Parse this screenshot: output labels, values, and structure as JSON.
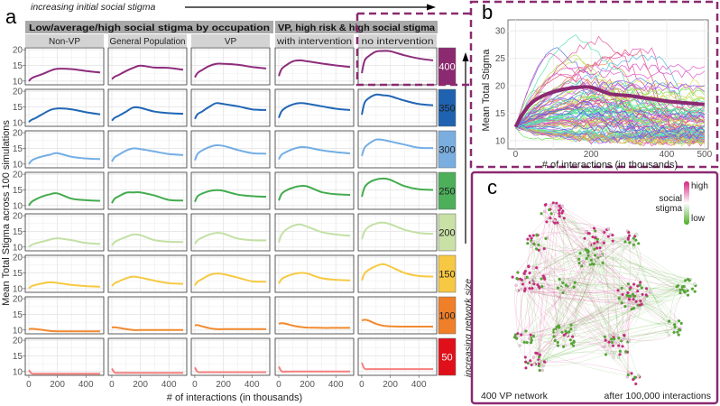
{
  "panel_labels": {
    "a": "a",
    "b": "b",
    "c": "c"
  },
  "chart_data": [
    {
      "panel": "a",
      "type": "line",
      "top_arrow_label": "increasing initial social stigma",
      "side_arrow_label": "increasing network size",
      "group_headers": [
        "Low/average/high social stigma by occupation",
        "VP, high risk & high social stigma"
      ],
      "columns": [
        "Non-VP",
        "General Population",
        "VP",
        "with intervention",
        "no intervention"
      ],
      "xlabel": "# of interactions (in thousands)",
      "ylabel": "Mean Total Stigma across 100 simulations",
      "x": [
        0,
        20,
        50,
        100,
        150,
        200,
        300,
        400,
        500
      ],
      "xlim": [
        -25,
        525
      ],
      "ylim": [
        8.8,
        20.6
      ],
      "yticks": [
        10,
        15,
        20
      ],
      "ytick_labels": [
        "10",
        "15",
        "20"
      ],
      "xticks": [
        0,
        200,
        400
      ],
      "xtick_labels": [
        "0",
        "200",
        "400"
      ],
      "rows": [
        {
          "network_size": "400",
          "line_color": "#8e2c7c",
          "strip_color": "#8b2a70",
          "strip_text_color": "#ffffff",
          "values": [
            [
              10,
              10.9,
              11.5,
              12.3,
              13.3,
              13.9,
              13.8,
              13.2,
              12.7
            ],
            [
              10.6,
              11.4,
              12,
              13.2,
              14.2,
              14.9,
              14.3,
              14.2,
              13.6
            ],
            [
              11.2,
              12.6,
              13.5,
              14.8,
              15.5,
              15.5,
              15.2,
              14.5,
              14
            ],
            [
              11.6,
              13.8,
              15,
              16.3,
              16.6,
              16.3,
              15.6,
              15,
              14.5
            ],
            [
              12.5,
              16.5,
              18,
              19.4,
              19.6,
              19.5,
              18.2,
              17.2,
              16.6
            ]
          ]
        },
        {
          "network_size": "350",
          "line_color": "#2166b5",
          "strip_color": "#1f62b0",
          "strip_text_color": "#222222",
          "values": [
            [
              10.2,
              10.9,
              11.5,
              12.8,
              14,
              14.5,
              14.2,
              13.3,
              12.6
            ],
            [
              10.6,
              11.5,
              12.2,
              13.5,
              14.8,
              14.7,
              13.5,
              13,
              12.8
            ],
            [
              11.2,
              12.7,
              13.5,
              15,
              16.2,
              15.9,
              15.2,
              14.2,
              14
            ],
            [
              11.5,
              13.6,
              14.8,
              15.8,
              16.2,
              16,
              15.2,
              14.4,
              14
            ],
            [
              12.5,
              16.3,
              17.8,
              18.9,
              18.7,
              18.4,
              17,
              15.9,
              15.5
            ]
          ]
        },
        {
          "network_size": "300",
          "line_color": "#74aee4",
          "strip_color": "#7aaee0",
          "strip_text_color": "#222222",
          "values": [
            [
              10,
              11.1,
              11.8,
              12.5,
              13,
              13.5,
              12.3,
              11.8,
              11.6
            ],
            [
              10.8,
              12.2,
              13,
              14.3,
              15,
              14.8,
              14,
              13.2,
              12.9
            ],
            [
              11.2,
              13.3,
              14.3,
              15.4,
              16,
              15.8,
              14.5,
              13.5,
              13.3
            ],
            [
              11.5,
              13,
              13.8,
              14.8,
              15.4,
              15.3,
              14.4,
              13.8,
              13.4
            ],
            [
              12.6,
              15.2,
              16.5,
              17.8,
              17.7,
              17.2,
              16.2,
              15.2,
              15.1
            ]
          ]
        },
        {
          "network_size": "250",
          "line_color": "#43ac4f",
          "strip_color": "#4daf5a",
          "strip_text_color": "#222222",
          "values": [
            [
              10,
              11.2,
              12,
              13,
              13.6,
              13.9,
              12.2,
              11.7,
              11.5
            ],
            [
              10.8,
              12.2,
              13,
              14.1,
              14.2,
              14.2,
              13.2,
              11.8,
              11.6
            ],
            [
              11.2,
              13,
              13.8,
              14.6,
              14.9,
              14.7,
              13.5,
              13,
              12.8
            ],
            [
              11.6,
              13.7,
              14.8,
              15.7,
              16.2,
              16.1,
              14.3,
              13.6,
              13.4
            ],
            [
              12.8,
              15.8,
              17.3,
              18.3,
              18.6,
              18.2,
              16.2,
              15.2,
              15
            ]
          ]
        },
        {
          "network_size": "200",
          "line_color": "#c3e0a5",
          "strip_color": "#c9e0a6",
          "strip_text_color": "#222222",
          "values": [
            [
              10,
              10.7,
              11.2,
              11.8,
              12.4,
              12.8,
              12.2,
              11.3,
              11
            ],
            [
              10.5,
              11.6,
              12.3,
              13.2,
              14,
              13.8,
              12.2,
              11.7,
              11.6
            ],
            [
              11,
              12.2,
              13,
              14,
              14.5,
              14.3,
              12.7,
              12.2,
              12.1
            ],
            [
              11.5,
              14,
              15.5,
              16.8,
              17.2,
              16.5,
              14.8,
              14,
              13.6
            ],
            [
              12.5,
              15,
              16.5,
              17.5,
              17.8,
              17.3,
              15.5,
              14.5,
              14.2
            ]
          ]
        },
        {
          "network_size": "150",
          "line_color": "#f7c942",
          "strip_color": "#f7c843",
          "strip_text_color": "#222222",
          "values": [
            [
              10,
              10.8,
              11.2,
              11.7,
              12,
              11.8,
              11.2,
              10.8,
              10.6
            ],
            [
              10.8,
              11.7,
              12.3,
              13.3,
              13.8,
              13.5,
              12.5,
              11.7,
              11.5
            ],
            [
              11,
              12.2,
              13,
              14.3,
              14.8,
              14.6,
              13.5,
              12.3,
              12.2
            ],
            [
              11.6,
              13,
              13.8,
              14.6,
              15,
              14.8,
              13.3,
              12.8,
              12.6
            ],
            [
              12.6,
              14.8,
              16,
              17.2,
              17.8,
              17,
              15,
              14,
              13.8
            ]
          ]
        },
        {
          "network_size": "100",
          "line_color": "#f28a2e",
          "strip_color": "#ef7f28",
          "strip_text_color": "#222222",
          "values": [
            [
              10.3,
              10.4,
              10.3,
              10,
              9.7,
              9.6,
              9.6,
              9.6,
              9.6
            ],
            [
              10.8,
              10.9,
              10.7,
              10.3,
              10,
              10,
              10,
              10,
              10
            ],
            [
              11.5,
              11.6,
              11.2,
              10.6,
              10.3,
              10.3,
              10.3,
              10.3,
              10.3
            ],
            [
              12,
              12.2,
              12,
              11.4,
              11,
              10.8,
              10.7,
              10.7,
              10.7
            ],
            [
              13,
              13.3,
              13,
              12,
              11.4,
              11.2,
              11.1,
              11.1,
              11.1
            ]
          ]
        },
        {
          "network_size": "50",
          "line_color": "#f67f7f",
          "strip_color": "#e0101a",
          "strip_text_color": "#ffffff",
          "values": [
            [
              10.5,
              9.4,
              9.3,
              9.3,
              9.3,
              9.3,
              9.3,
              9.3,
              9.3
            ],
            [
              11,
              9.7,
              9.6,
              9.6,
              9.6,
              9.6,
              9.6,
              9.6,
              9.6
            ],
            [
              11.3,
              9.9,
              9.8,
              9.8,
              9.8,
              9.8,
              9.8,
              9.8,
              9.8
            ],
            [
              11.6,
              10.1,
              10,
              10,
              10,
              10,
              10,
              10,
              10
            ],
            [
              12.8,
              10.9,
              10.8,
              10.8,
              10.8,
              10.8,
              10.8,
              10.8,
              10.8
            ]
          ]
        }
      ]
    },
    {
      "panel": "b",
      "type": "line",
      "xlabel": "# of interactions (in thousands)",
      "ylabel": "Mean Total Stigma",
      "xlim": [
        -20,
        510
      ],
      "ylim": [
        8.5,
        32
      ],
      "xticks": [
        0,
        200,
        400,
        500
      ],
      "xtick_labels": [
        "0",
        "200",
        "400",
        "500"
      ],
      "yticks": [
        10,
        15,
        20,
        25,
        30
      ],
      "ytick_labels": [
        "10",
        "15",
        "20",
        "25",
        "30"
      ],
      "mean_series": {
        "name": "mean",
        "color": "#8b2a70",
        "x": [
          0,
          20,
          50,
          100,
          150,
          200,
          250,
          300,
          400,
          500
        ],
        "values": [
          12.5,
          15,
          17.3,
          18.9,
          19.6,
          19.7,
          18.5,
          18.2,
          17.2,
          16.6
        ]
      },
      "individual_runs": 100
    },
    {
      "panel": "c",
      "type": "network",
      "caption_left": "400 VP network",
      "caption_right": "after 100,000 interactions",
      "legend_title_1": "social",
      "legend_title_2": "stigma",
      "legend_high": "high",
      "legend_low": "low",
      "high_color": "#d4237f",
      "low_color": "#4dac26"
    }
  ]
}
